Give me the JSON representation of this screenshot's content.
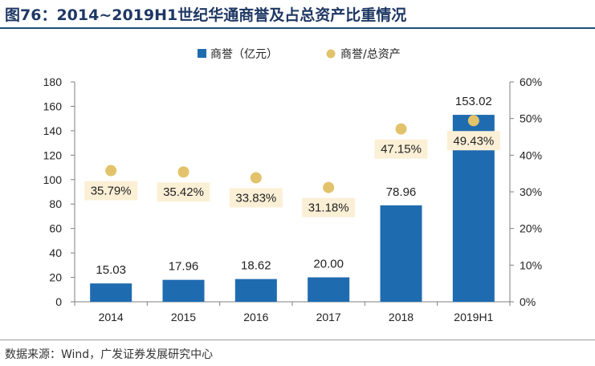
{
  "title": "图76：2014~2019H1世纪华通商誉及占总资产比重情况",
  "source": "数据来源：Wind，广发证券发展研究中心",
  "colors": {
    "bar": "#1f6bb0",
    "dot": "#e2c36b",
    "label_bg": "#fbf0d6",
    "title": "#1f3864"
  },
  "chart_data": {
    "type": "bar",
    "categories": [
      "2014",
      "2015",
      "2016",
      "2017",
      "2018",
      "2019H1"
    ],
    "series": [
      {
        "name": "商誉（亿元）",
        "type": "bar",
        "axis": "left",
        "values": [
          15.03,
          17.96,
          18.62,
          20.0,
          78.96,
          153.02
        ],
        "labels": [
          "15.03",
          "17.96",
          "18.62",
          "20.00",
          "78.96",
          "153.02"
        ]
      },
      {
        "name": "商誉/总资产",
        "type": "scatter",
        "axis": "right",
        "values": [
          35.79,
          35.42,
          33.83,
          31.18,
          47.15,
          49.43
        ],
        "labels": [
          "35.79%",
          "35.42%",
          "33.83%",
          "31.18%",
          "47.15%",
          "49.43%"
        ]
      }
    ],
    "y_left": {
      "min": 0,
      "max": 180,
      "ticks": [
        "0",
        "20",
        "40",
        "60",
        "80",
        "100",
        "120",
        "140",
        "160",
        "180"
      ]
    },
    "y_right": {
      "min": 0,
      "max": 60,
      "ticks": [
        "0%",
        "10%",
        "20%",
        "30%",
        "40%",
        "50%",
        "60%"
      ]
    },
    "legend": "top",
    "grid": false
  }
}
